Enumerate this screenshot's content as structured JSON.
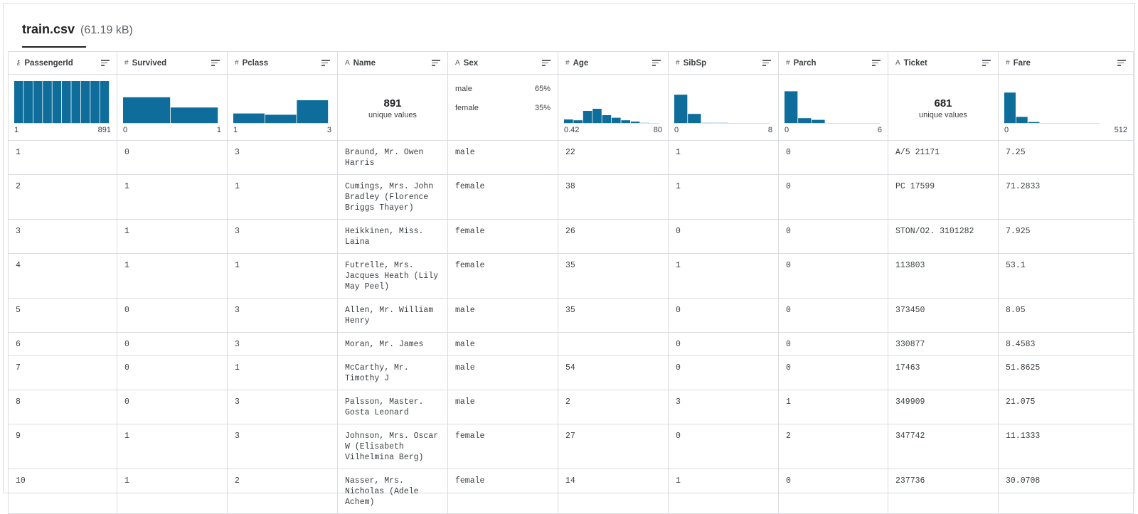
{
  "file": {
    "name": "train.csv",
    "size": "(61.19 kB)"
  },
  "icons": {
    "id": "key-icon",
    "numeric": "hash-icon",
    "string": "text-type-icon",
    "sort": "sort-icon"
  },
  "colors": {
    "bar": "#0E6D9A"
  },
  "columns": [
    {
      "label": "PassengerId",
      "type_glyph": "⚷",
      "kind": "id"
    },
    {
      "label": "Survived",
      "type_glyph": "#",
      "kind": "numeric"
    },
    {
      "label": "Pclass",
      "type_glyph": "#",
      "kind": "numeric"
    },
    {
      "label": "Name",
      "type_glyph": "A",
      "kind": "string"
    },
    {
      "label": "Sex",
      "type_glyph": "A",
      "kind": "string"
    },
    {
      "label": "Age",
      "type_glyph": "#",
      "kind": "numeric"
    },
    {
      "label": "SibSp",
      "type_glyph": "#",
      "kind": "numeric"
    },
    {
      "label": "Parch",
      "type_glyph": "#",
      "kind": "numeric"
    },
    {
      "label": "Ticket",
      "type_glyph": "A",
      "kind": "string"
    },
    {
      "label": "Fare",
      "type_glyph": "#",
      "kind": "numeric"
    }
  ],
  "summaries": [
    {
      "type": "hist",
      "bars": [
        1,
        1,
        1,
        1,
        1,
        1,
        1,
        1,
        1,
        1
      ],
      "min": "1",
      "max": "891"
    },
    {
      "type": "hist",
      "bars": [
        0.62,
        0.38
      ],
      "min": "0",
      "max": "1"
    },
    {
      "type": "hist",
      "bars": [
        0.24,
        0.21,
        0.55
      ],
      "min": "1",
      "max": "3"
    },
    {
      "type": "unique",
      "count": "891",
      "label": "unique values"
    },
    {
      "type": "categorical",
      "items": [
        {
          "name": "male",
          "pct": "65%"
        },
        {
          "name": "female",
          "pct": "35%"
        }
      ]
    },
    {
      "type": "hist",
      "bars": [
        0.1,
        0.08,
        0.3,
        0.35,
        0.2,
        0.14,
        0.08,
        0.05,
        0.02,
        0.01
      ],
      "min": "0.42",
      "max": "80"
    },
    {
      "type": "hist",
      "bars": [
        0.68,
        0.23,
        0.02,
        0.02,
        0.01,
        0.01,
        0.01
      ],
      "min": "0",
      "max": "8"
    },
    {
      "type": "hist",
      "bars": [
        0.76,
        0.13,
        0.09,
        0.01,
        0.01,
        0.005,
        0.005
      ],
      "min": "0",
      "max": "6"
    },
    {
      "type": "unique",
      "count": "681",
      "label": "unique values"
    },
    {
      "type": "hist",
      "bars": [
        0.73,
        0.16,
        0.04,
        0.01,
        0.005,
        0.005,
        0.005,
        0.005
      ],
      "min": "0",
      "max": "512"
    }
  ],
  "rows": [
    [
      "1",
      "0",
      "3",
      "Braund, Mr. Owen Harris",
      "male",
      "22",
      "1",
      "0",
      "A/5 21171",
      "7.25"
    ],
    [
      "2",
      "1",
      "1",
      "Cumings, Mrs. John Bradley (Florence Briggs Thayer)",
      "female",
      "38",
      "1",
      "0",
      "PC 17599",
      "71.2833"
    ],
    [
      "3",
      "1",
      "3",
      "Heikkinen, Miss. Laina",
      "female",
      "26",
      "0",
      "0",
      "STON/O2. 3101282",
      "7.925"
    ],
    [
      "4",
      "1",
      "1",
      "Futrelle, Mrs. Jacques Heath (Lily May Peel)",
      "female",
      "35",
      "1",
      "0",
      "113803",
      "53.1"
    ],
    [
      "5",
      "0",
      "3",
      "Allen, Mr. William Henry",
      "male",
      "35",
      "0",
      "0",
      "373450",
      "8.05"
    ],
    [
      "6",
      "0",
      "3",
      "Moran, Mr. James",
      "male",
      "",
      "0",
      "0",
      "330877",
      "8.4583"
    ],
    [
      "7",
      "0",
      "1",
      "McCarthy, Mr. Timothy J",
      "male",
      "54",
      "0",
      "0",
      "17463",
      "51.8625"
    ],
    [
      "8",
      "0",
      "3",
      "Palsson, Master. Gosta Leonard",
      "male",
      "2",
      "3",
      "1",
      "349909",
      "21.075"
    ],
    [
      "9",
      "1",
      "3",
      "Johnson, Mrs. Oscar W (Elisabeth Vilhelmina Berg)",
      "female",
      "27",
      "0",
      "2",
      "347742",
      "11.1333"
    ],
    [
      "10",
      "1",
      "2",
      "Nasser, Mrs. Nicholas (Adele Achem)",
      "female",
      "14",
      "1",
      "0",
      "237736",
      "30.0708"
    ]
  ]
}
